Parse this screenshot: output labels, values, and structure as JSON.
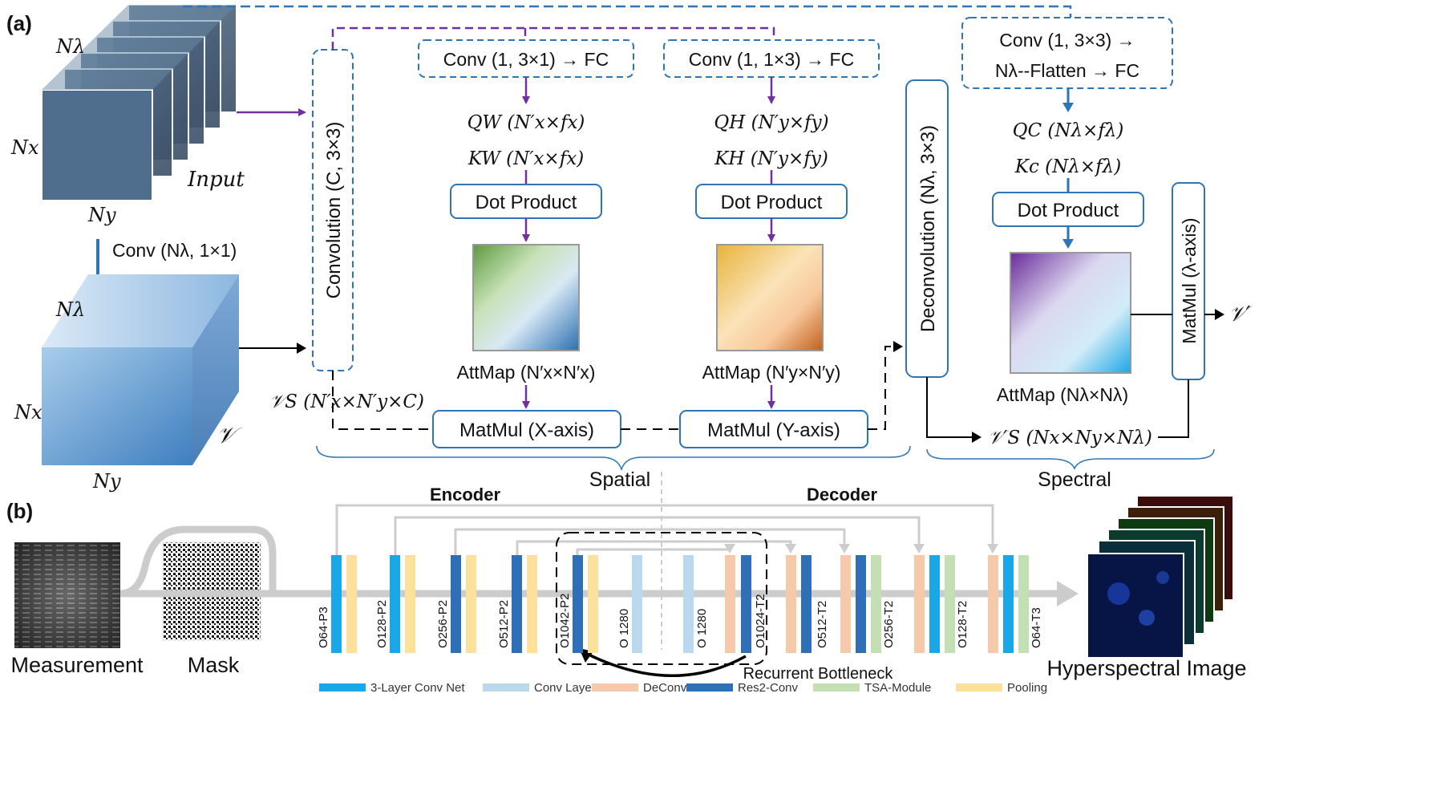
{
  "panel_a": {
    "label": "(a)",
    "input_cube": {
      "n_lambda": "Nλ",
      "n_x": "Nx",
      "n_y": "Ny",
      "input_label": "Input"
    },
    "conv_step": "Conv (Nλ, 1×1)",
    "v_cube": {
      "n_lambda": "Nλ",
      "n_x": "Nx",
      "n_y": "Ny",
      "v_label": "𝒱"
    },
    "convolution_box": "Convolution (C, 3×3)",
    "vs_label": "𝒱S (N′x×N′y×C)",
    "x_branch": {
      "conv_fc": "Conv (1, 3×1) → FC",
      "q": "QW (N′x×fx)",
      "k": "KW (N′x×fx)",
      "dot": "Dot Product",
      "attmap": "AttMap (N′x×N′x)",
      "matmul": "MatMul (X-axis)"
    },
    "y_branch": {
      "conv_fc": "Conv (1, 1×3) → FC",
      "q": "QH (N′y×fy)",
      "k": "KH (N′y×fy)",
      "dot": "Dot Product",
      "attmap": "AttMap (N′y×N′y)",
      "matmul": "MatMul (Y-axis)"
    },
    "deconvolution_box": "Deconvolution (Nλ, 3×3)",
    "spectral_branch": {
      "conv_line1": "Conv (1, 3×3) →",
      "conv_line2": "Nλ--Flatten → FC",
      "q": "QC (Nλ×fλ)",
      "k": "Kc (Nλ×fλ)",
      "dot": "Dot Product",
      "attmap": "AttMap (Nλ×Nλ)",
      "matmul": "MatMul (λ-axis)",
      "vs_prime": "𝒱′S (Nx×Ny×Nλ)",
      "output": "𝒱′"
    },
    "spatial_label": "Spatial",
    "spectral_label": "Spectral"
  },
  "panel_b": {
    "label": "(b)",
    "measurement_label": "Measurement",
    "mask_label": "Mask",
    "encoder_label": "Encoder",
    "decoder_label": "Decoder",
    "output_label": "Hyperspectral Image",
    "recurrent_label": "Recurrent Bottleneck",
    "block_labels": [
      "O64-P3",
      "O128-P2",
      "O256-P2",
      "O512-P2",
      "O1042-P2",
      "O 1280",
      "O 1280",
      "O1024-T2",
      "O512-T2",
      "O256-T2",
      "O128-T2",
      "O64-T3"
    ],
    "legend": [
      {
        "label": "3-Layer Conv Net",
        "color": "#1aa7e8"
      },
      {
        "label": "Conv Layer",
        "color": "#bcd8ee"
      },
      {
        "label": "DeConv",
        "color": "#f6c9aa"
      },
      {
        "label": "Res2-Conv",
        "color": "#2e6fb6"
      },
      {
        "label": "TSA-Module",
        "color": "#c3e0b4"
      },
      {
        "label": "Pooling",
        "color": "#fbe19c"
      }
    ]
  },
  "colors": {
    "blue_box": "#2e75b6",
    "purple_arrow": "#7030a0",
    "blue_arrow": "#2e75b6"
  }
}
